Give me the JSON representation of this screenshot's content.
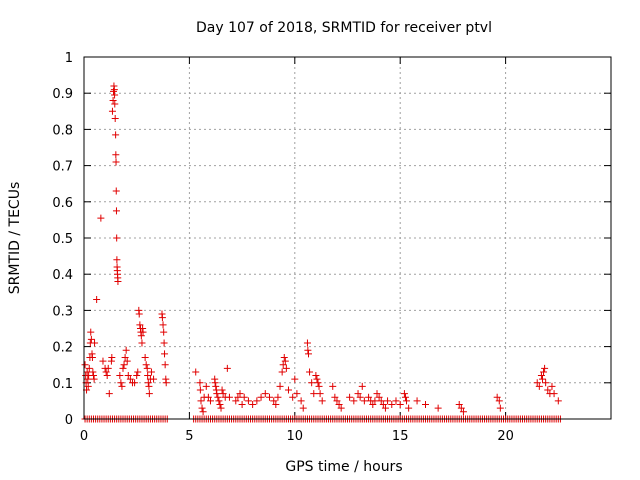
{
  "chart_data": {
    "type": "scatter",
    "title": "Day 107 of 2018, SRMTID for receiver ptvl",
    "xlabel": "GPS time / hours",
    "ylabel": "SRMTID / TECUs",
    "xlim": [
      0,
      25
    ],
    "ylim": [
      0,
      1
    ],
    "xticks": [
      0,
      5,
      10,
      15,
      20
    ],
    "xtick_labels": [
      "0",
      "5",
      "10",
      "15",
      "20"
    ],
    "yticks": [
      0,
      0.1,
      0.2,
      0.3,
      0.4,
      0.5,
      0.6,
      0.7,
      0.8,
      0.9,
      1
    ],
    "ytick_labels": [
      "0",
      "0.1",
      "0.2",
      "0.3",
      "0.4",
      "0.5",
      "0.6",
      "0.7",
      "0.8",
      "0.9",
      "1"
    ],
    "grid": true,
    "marker": "plus",
    "color": "#e00000",
    "series": [
      {
        "name": "SRMTID",
        "points": [
          [
            0.05,
            0.15
          ],
          [
            0.08,
            0.12
          ],
          [
            0.1,
            0.1
          ],
          [
            0.12,
            0.08
          ],
          [
            0.15,
            0.13
          ],
          [
            0.18,
            0.11
          ],
          [
            0.2,
            0.09
          ],
          [
            0.22,
            0.12
          ],
          [
            0.25,
            0.14
          ],
          [
            0.28,
            0.17
          ],
          [
            0.3,
            0.21
          ],
          [
            0.32,
            0.24
          ],
          [
            0.35,
            0.22
          ],
          [
            0.38,
            0.18
          ],
          [
            0.4,
            0.17
          ],
          [
            0.42,
            0.13
          ],
          [
            0.45,
            0.12
          ],
          [
            0.48,
            0.11
          ],
          [
            0.5,
            0.21
          ],
          [
            0.6,
            0.33
          ],
          [
            0.8,
            0.555
          ],
          [
            0.9,
            0.16
          ],
          [
            1.0,
            0.14
          ],
          [
            1.05,
            0.13
          ],
          [
            1.1,
            0.12
          ],
          [
            1.15,
            0.14
          ],
          [
            1.2,
            0.07
          ],
          [
            1.3,
            0.16
          ],
          [
            1.32,
            0.17
          ],
          [
            1.35,
            0.85
          ],
          [
            1.38,
            0.88
          ],
          [
            1.4,
            0.905
          ],
          [
            1.42,
            0.92
          ],
          [
            1.44,
            0.91
          ],
          [
            1.45,
            0.895
          ],
          [
            1.46,
            0.87
          ],
          [
            1.48,
            0.83
          ],
          [
            1.5,
            0.785
          ],
          [
            1.51,
            0.73
          ],
          [
            1.52,
            0.71
          ],
          [
            1.53,
            0.63
          ],
          [
            1.54,
            0.575
          ],
          [
            1.55,
            0.5
          ],
          [
            1.56,
            0.44
          ],
          [
            1.57,
            0.42
          ],
          [
            1.58,
            0.41
          ],
          [
            1.59,
            0.4
          ],
          [
            1.6,
            0.39
          ],
          [
            1.61,
            0.38
          ],
          [
            1.7,
            0.12
          ],
          [
            1.75,
            0.1
          ],
          [
            1.8,
            0.09
          ],
          [
            1.85,
            0.14
          ],
          [
            1.9,
            0.15
          ],
          [
            1.95,
            0.17
          ],
          [
            2.0,
            0.19
          ],
          [
            2.05,
            0.16
          ],
          [
            2.1,
            0.12
          ],
          [
            2.2,
            0.11
          ],
          [
            2.3,
            0.1
          ],
          [
            2.4,
            0.1
          ],
          [
            2.5,
            0.12
          ],
          [
            2.55,
            0.13
          ],
          [
            2.6,
            0.3
          ],
          [
            2.62,
            0.29
          ],
          [
            2.65,
            0.26
          ],
          [
            2.68,
            0.25
          ],
          [
            2.7,
            0.24
          ],
          [
            2.72,
            0.23
          ],
          [
            2.75,
            0.21
          ],
          [
            2.78,
            0.25
          ],
          [
            2.8,
            0.24
          ],
          [
            2.9,
            0.17
          ],
          [
            2.95,
            0.15
          ],
          [
            3.0,
            0.14
          ],
          [
            3.02,
            0.12
          ],
          [
            3.05,
            0.1
          ],
          [
            3.08,
            0.09
          ],
          [
            3.1,
            0.07
          ],
          [
            3.15,
            0.11
          ],
          [
            3.2,
            0.13
          ],
          [
            3.3,
            0.11
          ],
          [
            3.7,
            0.29
          ],
          [
            3.72,
            0.28
          ],
          [
            3.75,
            0.26
          ],
          [
            3.78,
            0.24
          ],
          [
            3.8,
            0.21
          ],
          [
            3.82,
            0.18
          ],
          [
            3.85,
            0.15
          ],
          [
            3.88,
            0.11
          ],
          [
            3.9,
            0.1
          ],
          [
            5.3,
            0.13
          ],
          [
            5.5,
            0.1
          ],
          [
            5.52,
            0.08
          ],
          [
            5.55,
            0.05
          ],
          [
            5.6,
            0.03
          ],
          [
            5.65,
            0.02
          ],
          [
            5.7,
            0.06
          ],
          [
            5.8,
            0.09
          ],
          [
            5.9,
            0.06
          ],
          [
            6.0,
            0.05
          ],
          [
            6.2,
            0.11
          ],
          [
            6.22,
            0.1
          ],
          [
            6.25,
            0.09
          ],
          [
            6.28,
            0.08
          ],
          [
            6.3,
            0.07
          ],
          [
            6.35,
            0.06
          ],
          [
            6.4,
            0.05
          ],
          [
            6.45,
            0.04
          ],
          [
            6.5,
            0.03
          ],
          [
            6.55,
            0.08
          ],
          [
            6.6,
            0.07
          ],
          [
            6.7,
            0.06
          ],
          [
            6.8,
            0.14
          ],
          [
            6.9,
            0.06
          ],
          [
            7.2,
            0.05
          ],
          [
            7.3,
            0.06
          ],
          [
            7.4,
            0.07
          ],
          [
            7.5,
            0.04
          ],
          [
            7.6,
            0.06
          ],
          [
            7.8,
            0.05
          ],
          [
            8.0,
            0.04
          ],
          [
            8.2,
            0.05
          ],
          [
            8.4,
            0.06
          ],
          [
            8.6,
            0.07
          ],
          [
            8.8,
            0.06
          ],
          [
            9.0,
            0.05
          ],
          [
            9.1,
            0.04
          ],
          [
            9.2,
            0.06
          ],
          [
            9.3,
            0.09
          ],
          [
            9.4,
            0.13
          ],
          [
            9.45,
            0.15
          ],
          [
            9.5,
            0.17
          ],
          [
            9.55,
            0.16
          ],
          [
            9.6,
            0.14
          ],
          [
            9.7,
            0.08
          ],
          [
            9.9,
            0.06
          ],
          [
            10.0,
            0.11
          ],
          [
            10.1,
            0.07
          ],
          [
            10.3,
            0.05
          ],
          [
            10.4,
            0.03
          ],
          [
            10.6,
            0.21
          ],
          [
            10.62,
            0.19
          ],
          [
            10.65,
            0.18
          ],
          [
            10.7,
            0.13
          ],
          [
            10.8,
            0.1
          ],
          [
            10.9,
            0.07
          ],
          [
            11.0,
            0.12
          ],
          [
            11.05,
            0.11
          ],
          [
            11.1,
            0.1
          ],
          [
            11.15,
            0.09
          ],
          [
            11.2,
            0.07
          ],
          [
            11.3,
            0.05
          ],
          [
            11.8,
            0.09
          ],
          [
            11.9,
            0.06
          ],
          [
            12.0,
            0.05
          ],
          [
            12.1,
            0.04
          ],
          [
            12.2,
            0.03
          ],
          [
            12.6,
            0.06
          ],
          [
            12.8,
            0.05
          ],
          [
            13.0,
            0.07
          ],
          [
            13.1,
            0.06
          ],
          [
            13.2,
            0.09
          ],
          [
            13.3,
            0.05
          ],
          [
            13.5,
            0.06
          ],
          [
            13.6,
            0.05
          ],
          [
            13.7,
            0.04
          ],
          [
            13.8,
            0.05
          ],
          [
            13.9,
            0.07
          ],
          [
            14.0,
            0.06
          ],
          [
            14.1,
            0.05
          ],
          [
            14.2,
            0.04
          ],
          [
            14.3,
            0.03
          ],
          [
            14.4,
            0.05
          ],
          [
            14.6,
            0.04
          ],
          [
            14.8,
            0.05
          ],
          [
            15.0,
            0.04
          ],
          [
            15.2,
            0.07
          ],
          [
            15.25,
            0.06
          ],
          [
            15.3,
            0.05
          ],
          [
            15.4,
            0.03
          ],
          [
            15.8,
            0.05
          ],
          [
            16.2,
            0.04
          ],
          [
            16.8,
            0.03
          ],
          [
            17.8,
            0.04
          ],
          [
            17.9,
            0.03
          ],
          [
            18.0,
            0.02
          ],
          [
            19.6,
            0.06
          ],
          [
            19.7,
            0.05
          ],
          [
            19.75,
            0.03
          ],
          [
            21.5,
            0.1
          ],
          [
            21.6,
            0.09
          ],
          [
            21.7,
            0.12
          ],
          [
            21.75,
            0.11
          ],
          [
            21.8,
            0.13
          ],
          [
            21.85,
            0.14
          ],
          [
            21.9,
            0.1
          ],
          [
            22.0,
            0.08
          ],
          [
            22.1,
            0.07
          ],
          [
            22.2,
            0.09
          ],
          [
            22.3,
            0.07
          ],
          [
            22.5,
            0.05
          ]
        ]
      }
    ],
    "baseline_ranges": [
      [
        0.05,
        4.0
      ],
      [
        5.2,
        22.6
      ]
    ],
    "baseline_value": 0
  }
}
